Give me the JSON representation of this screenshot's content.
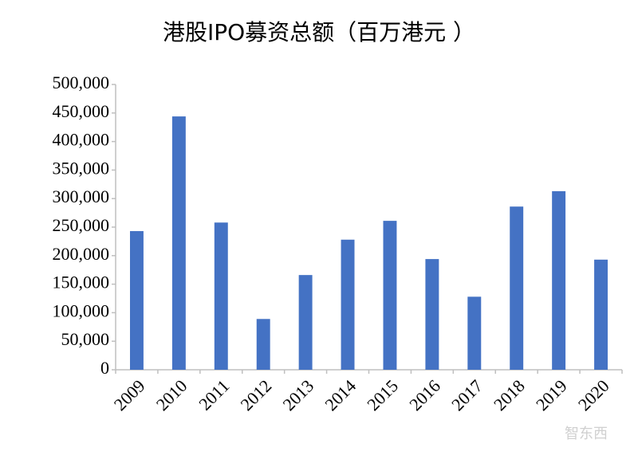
{
  "chart_data": {
    "type": "bar",
    "title": "港股IPO募资总额（百万港元 ）",
    "categories": [
      "2009",
      "2010",
      "2011",
      "2012",
      "2013",
      "2014",
      "2015",
      "2016",
      "2017",
      "2018",
      "2019",
      "2020"
    ],
    "values": [
      243000,
      444000,
      258000,
      89000,
      166000,
      228000,
      261000,
      194000,
      128000,
      286000,
      313000,
      193000
    ],
    "color": "#4472c4",
    "ylim": [
      0,
      500000
    ],
    "yticks": [
      0,
      {
        "value": 50000,
        "label": "50,000"
      },
      {
        "value": 100000,
        "label": "100,000"
      },
      {
        "value": 150000,
        "label": "150,000"
      },
      {
        "value": 200000,
        "label": "200,000"
      },
      {
        "value": 250000,
        "label": "250,000"
      },
      {
        "value": 300000,
        "label": "300,000"
      },
      {
        "value": 350000,
        "label": "350,000"
      },
      {
        "value": 400000,
        "label": "400,000"
      },
      {
        "value": 450000,
        "label": "450,000"
      },
      {
        "value": 500000,
        "label": "500,000"
      }
    ],
    "grid": false
  },
  "watermark": "智东西"
}
